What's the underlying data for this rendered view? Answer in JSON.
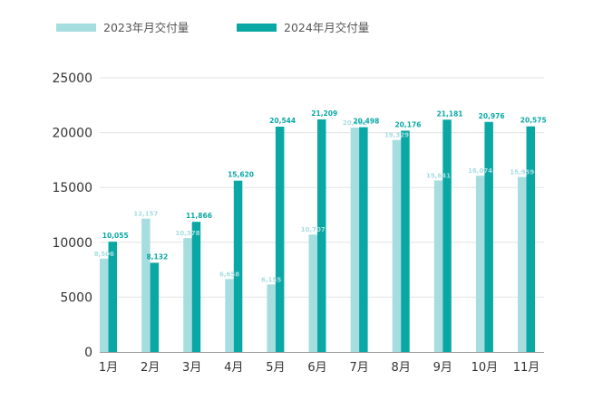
{
  "chart_data": {
    "type": "bar",
    "title": "",
    "xlabel": "",
    "ylabel": "",
    "ylim": [
      0,
      25000
    ],
    "yticks": [
      0,
      5000,
      10000,
      15000,
      20000,
      25000
    ],
    "ytick_labels": [
      "0",
      "5000",
      "10000",
      "15000",
      "20000",
      "25000"
    ],
    "grid": true,
    "legend_position": "top-left",
    "categories": [
      "1月",
      "2月",
      "3月",
      "4月",
      "5月",
      "6月",
      "7月",
      "8月",
      "9月",
      "10月",
      "11月"
    ],
    "series": [
      {
        "name": "2023年月交付量",
        "color": "#a6dee0",
        "values": [
          8506,
          12157,
          10378,
          6658,
          6155,
          10707,
          20462,
          19329,
          15641,
          16074,
          15959
        ],
        "labels": [
          "8,506",
          "12,157",
          "10,378",
          "6,658",
          "6,155",
          "10,707",
          "20,462",
          "19,329",
          "15,641",
          "16,074",
          "15,959"
        ]
      },
      {
        "name": "2024年月交付量",
        "color": "#0aa8a5",
        "values": [
          10055,
          8132,
          11866,
          15620,
          20544,
          21209,
          20498,
          20176,
          21181,
          20976,
          20575
        ],
        "labels": [
          "10,055",
          "8,132",
          "11,866",
          "15,620",
          "20,544",
          "21,209",
          "20,498",
          "20,176",
          "21,181",
          "20,976",
          "20,575"
        ]
      }
    ]
  },
  "colors": {
    "grid": "#e3e3e3",
    "axis": "#9a9a9a",
    "text": "#333333"
  }
}
